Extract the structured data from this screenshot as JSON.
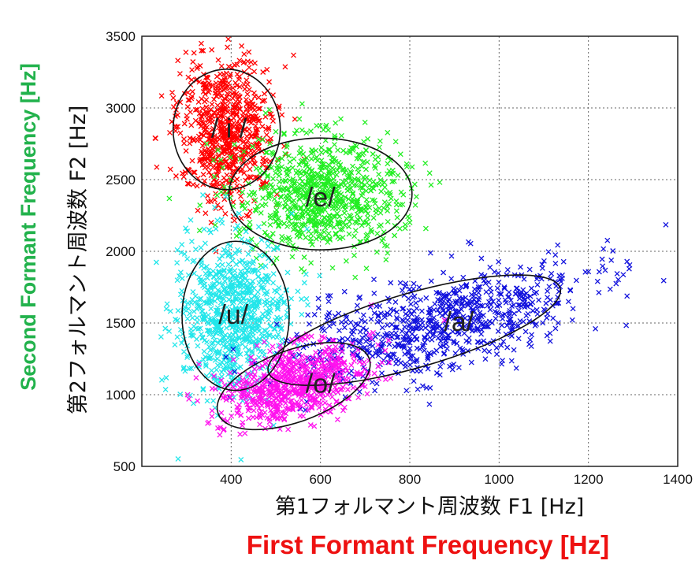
{
  "chart_data": {
    "type": "scatter",
    "title": "",
    "xlabel": "第1フォルマント周波数 F1 [Hz]",
    "ylabel": "第2フォルマント周波数 F2 [Hz]",
    "xlabel_en": "First Formant Frequency [Hz]",
    "ylabel_en": "Second Formant Frequency [Hz]",
    "xlim": [
      200,
      1400
    ],
    "ylim": [
      500,
      3500
    ],
    "xticks": [
      400,
      600,
      800,
      1000,
      1200,
      1400
    ],
    "yticks": [
      500,
      1000,
      1500,
      2000,
      2500,
      3000,
      3500
    ],
    "grid": true,
    "marker": "x",
    "series": [
      {
        "name": "/i/",
        "color": "#ff0000",
        "center": [
          390,
          2850
        ],
        "spread": [
          55,
          260
        ],
        "angle": 0,
        "n": 700,
        "ellipse": {
          "cx": 390,
          "cy": 2850,
          "rx": 120,
          "ry": 420,
          "angle": 0
        }
      },
      {
        "name": "/e/",
        "color": "#22ee22",
        "center": [
          600,
          2400
        ],
        "spread": [
          90,
          200
        ],
        "angle": 0,
        "n": 800,
        "ellipse": {
          "cx": 600,
          "cy": 2400,
          "rx": 205,
          "ry": 390,
          "angle": 0
        }
      },
      {
        "name": "/u/",
        "color": "#22e6ea",
        "center": [
          400,
          1550
        ],
        "spread": [
          60,
          280
        ],
        "angle": 0,
        "n": 800,
        "ellipse": {
          "cx": 410,
          "cy": 1550,
          "rx": 120,
          "ry": 520,
          "angle": 0
        }
      },
      {
        "name": "/a/",
        "color": "#1111dd",
        "center": [
          870,
          1500
        ],
        "spread": [
          170,
          160
        ],
        "angle": 0.25,
        "n": 800,
        "ellipse": {
          "cx": 810,
          "cy": 1450,
          "rx": 340,
          "ry": 260,
          "angle": 0.28
        }
      },
      {
        "name": "/o/",
        "color": "#ff11ee",
        "center": [
          540,
          1080
        ],
        "spread": [
          85,
          120
        ],
        "angle": 0.3,
        "n": 700,
        "ellipse": {
          "cx": 540,
          "cy": 1060,
          "rx": 180,
          "ry": 250,
          "angle": 0.35
        }
      }
    ],
    "vowel_labels": [
      {
        "text": "/ i /",
        "x": 395,
        "y": 2860,
        "color": "#222222"
      },
      {
        "text": "/e/",
        "x": 600,
        "y": 2380,
        "color": "#222222"
      },
      {
        "text": "/u/",
        "x": 405,
        "y": 1560,
        "color": "#222222"
      },
      {
        "text": "/a/",
        "x": 910,
        "y": 1510,
        "color": "#dddddd"
      },
      {
        "text": "/o/",
        "x": 600,
        "y": 1080,
        "color": "#222222"
      }
    ],
    "colors": {
      "xlabel_en": "#ee1111",
      "ylabel_en": "#22b24c"
    }
  }
}
